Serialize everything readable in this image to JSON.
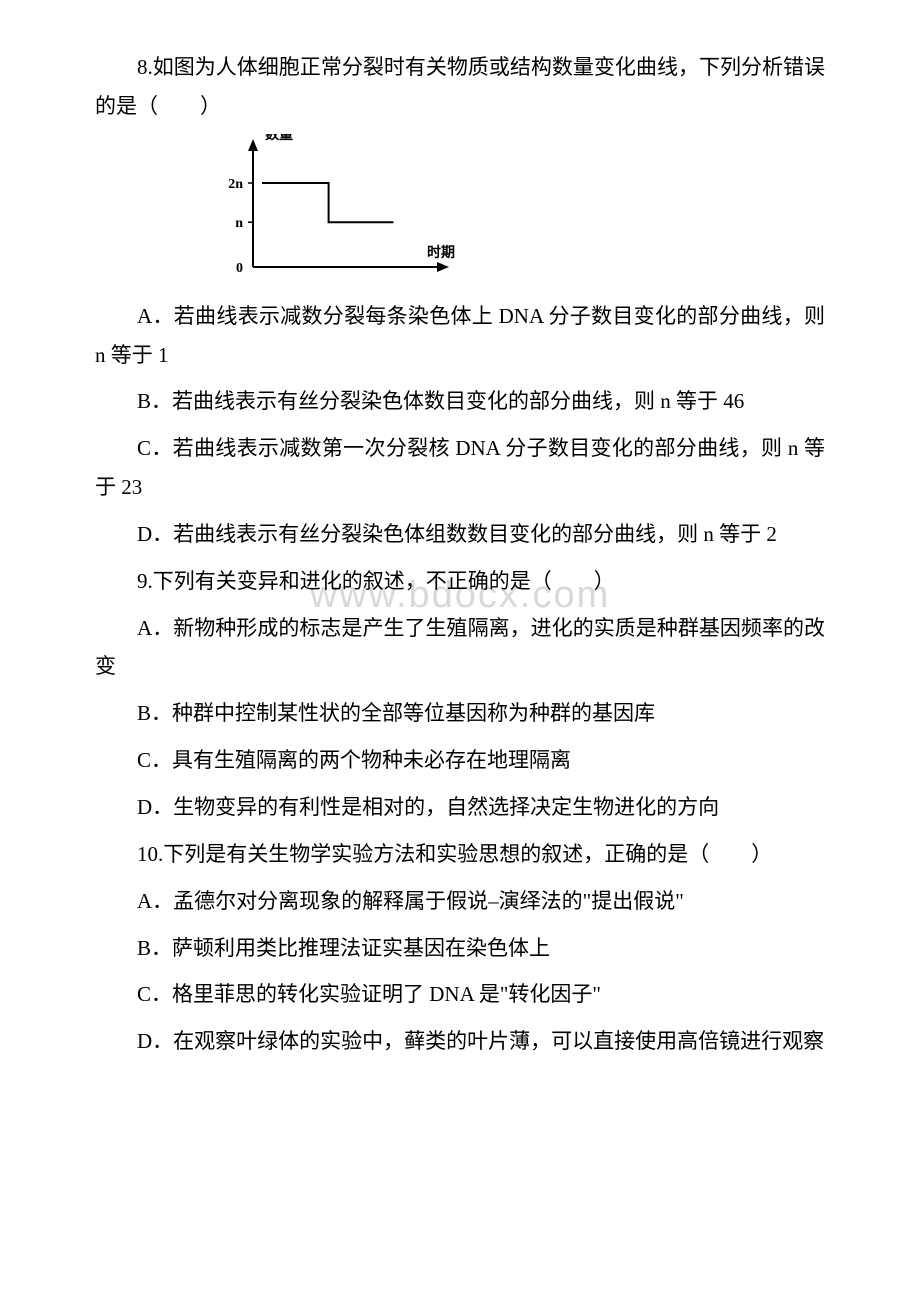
{
  "watermark": "www.bdocx.com",
  "q8": {
    "stem": "8.如图为人体细胞正常分裂时有关物质或结构数量变化曲线，下列分析错误的是（　　）",
    "chart": {
      "type": "line-step",
      "x_axis_label": "时期",
      "y_axis_label": "数量",
      "y_ticks": [
        "0",
        "n",
        "2n"
      ],
      "axis_color": "#000000",
      "line_color": "#000000",
      "background_color": "#ffffff",
      "segments": [
        {
          "from": [
            0.05,
            0.75
          ],
          "to": [
            0.42,
            0.75
          ]
        },
        {
          "from": [
            0.42,
            0.75
          ],
          "to": [
            0.42,
            0.4
          ]
        },
        {
          "from": [
            0.42,
            0.4
          ],
          "to": [
            0.78,
            0.4
          ]
        }
      ],
      "arrow_x": true,
      "arrow_y": true,
      "font_size": 14,
      "font_weight": "bold"
    },
    "A": "A．若曲线表示减数分裂每条染色体上 DNA 分子数目变化的部分曲线，则 n 等于 1",
    "B": "B．若曲线表示有丝分裂染色体数目变化的部分曲线，则 n 等于 46",
    "C": "C．若曲线表示减数第一次分裂核 DNA 分子数目变化的部分曲线，则 n 等于 23",
    "D": "D．若曲线表示有丝分裂染色体组数数目变化的部分曲线，则 n 等于 2"
  },
  "q9": {
    "stem": "9.下列有关变异和进化的叙述，不正确的是（　　）",
    "A": "A．新物种形成的标志是产生了生殖隔离，进化的实质是种群基因频率的改变",
    "B": "B．种群中控制某性状的全部等位基因称为种群的基因库",
    "C": "C．具有生殖隔离的两个物种未必存在地理隔离",
    "D": "D．生物变异的有利性是相对的，自然选择决定生物进化的方向"
  },
  "q10": {
    "stem": "10.下列是有关生物学实验方法和实验思想的叙述，正确的是（　　）",
    "A": "A．孟德尔对分离现象的解释属于假说–演绎法的\"提出假说\"",
    "B": "B．萨顿利用类比推理法证实基因在染色体上",
    "C": "C．格里菲思的转化实验证明了 DNA 是\"转化因子\"",
    "D": "D．在观察叶绿体的实验中，藓类的叶片薄，可以直接使用高倍镜进行观察"
  }
}
